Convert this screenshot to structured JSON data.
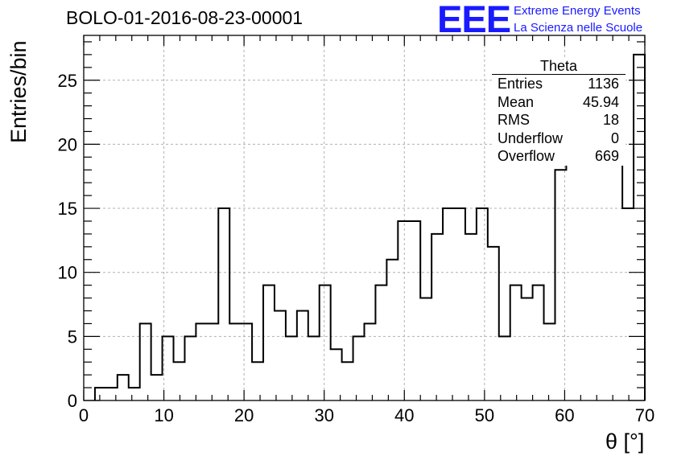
{
  "title": "BOLO-01-2016-08-23-00001",
  "logo": {
    "mark": "EEE",
    "line1": "Extreme Energy Events",
    "line2": "La Scienza nelle Scuole",
    "color": "#1a1aff"
  },
  "stats": {
    "title": "Theta",
    "rows": [
      {
        "label": "Entries",
        "value": "1136"
      },
      {
        "label": "Mean",
        "value": "45.94"
      },
      {
        "label": "RMS",
        "value": "18"
      },
      {
        "label": "Underflow",
        "value": "0"
      },
      {
        "label": "Overflow",
        "value": "669"
      }
    ]
  },
  "chart_data": {
    "type": "histogram",
    "xlabel": "θ [°]",
    "ylabel": "Entries/bin",
    "xlim": [
      0,
      70
    ],
    "ylim": [
      0,
      28.5
    ],
    "x_ticks": [
      0,
      10,
      20,
      30,
      40,
      50,
      60,
      70
    ],
    "y_ticks": [
      0,
      5,
      10,
      15,
      20,
      25
    ],
    "grid": true,
    "bin_width": 1.4,
    "first_bin_low": 1.4,
    "values": [
      1,
      1,
      2,
      1,
      6,
      2,
      5,
      3,
      5,
      6,
      6,
      15,
      6,
      6,
      3,
      9,
      7,
      5,
      7,
      5,
      9,
      4,
      3,
      5,
      6,
      9,
      11,
      14,
      14,
      8,
      13,
      15,
      15,
      13,
      15,
      12,
      5,
      9,
      8,
      9,
      6,
      18,
      22,
      23,
      19,
      20,
      19,
      15,
      27
    ]
  }
}
